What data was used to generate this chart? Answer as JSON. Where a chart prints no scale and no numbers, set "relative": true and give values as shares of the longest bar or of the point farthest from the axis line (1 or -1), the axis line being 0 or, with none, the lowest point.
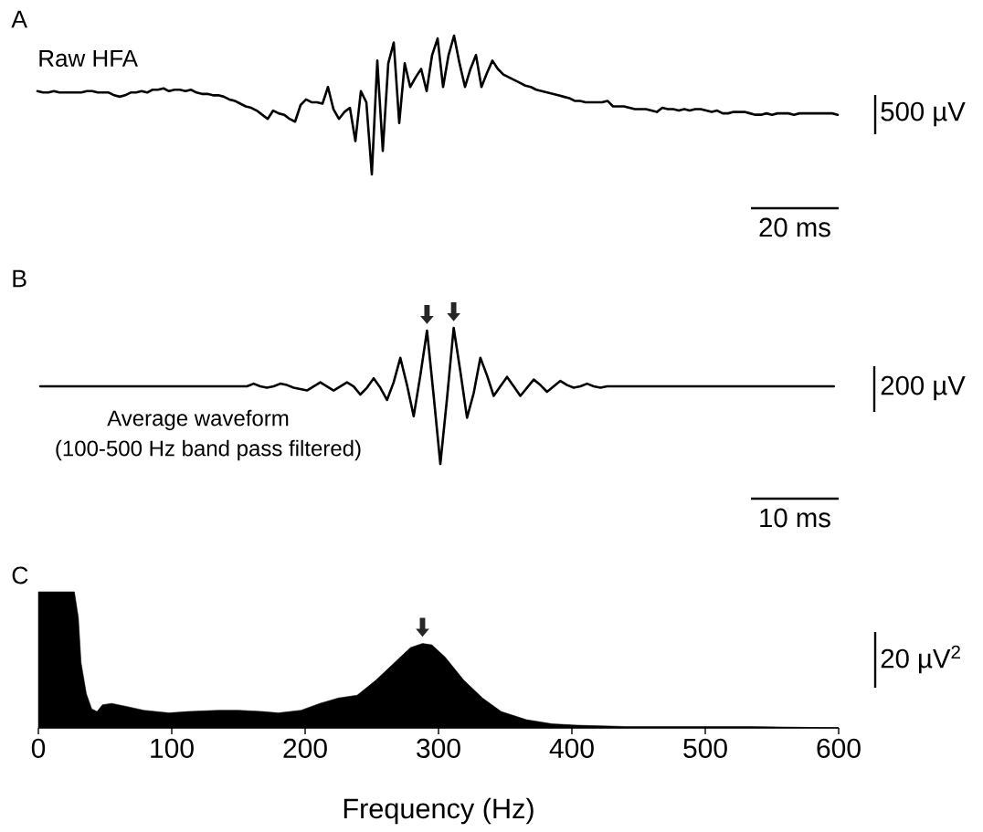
{
  "chart_data": [
    {
      "type": "line",
      "title": "A",
      "relative": true,
      "color": "#000000",
      "annotations": [
        "Raw HFA",
        "500 µV",
        "20 ms"
      ],
      "categories": [
        null,
        null,
        null,
        null,
        null,
        null,
        null,
        null,
        null,
        null,
        null,
        null,
        null,
        null,
        null,
        null,
        null,
        null,
        null,
        null,
        null,
        null,
        null,
        null,
        null,
        null,
        null,
        null,
        null,
        null,
        null,
        null,
        null,
        null,
        null,
        null,
        null,
        null,
        null,
        null,
        null,
        null,
        null,
        null,
        null,
        null,
        null,
        null,
        null,
        null,
        null,
        null,
        null,
        null,
        null,
        null,
        null,
        null,
        null,
        null,
        null,
        null,
        null,
        null,
        null,
        null,
        null,
        null,
        null,
        null,
        null,
        null,
        null,
        null,
        null,
        null,
        null,
        null,
        null,
        null,
        null,
        null,
        null,
        null,
        null,
        null,
        null,
        null,
        null,
        null,
        null,
        null,
        null,
        null,
        null,
        null,
        null,
        null,
        null,
        null,
        null,
        null,
        null,
        null,
        null,
        null,
        null,
        null,
        null,
        null,
        null,
        null,
        null,
        null,
        null,
        null,
        null,
        null,
        null,
        null,
        null,
        null,
        null,
        null,
        null,
        null,
        null,
        null,
        null,
        null,
        null,
        null,
        null,
        null,
        null,
        null,
        null,
        null,
        null,
        null,
        null,
        null,
        null,
        null,
        null,
        null,
        null
      ],
      "values": [
        0.6,
        0.59,
        0.59,
        0.6,
        0.59,
        0.59,
        0.59,
        0.59,
        0.59,
        0.6,
        0.6,
        0.59,
        0.59,
        0.59,
        0.57,
        0.56,
        0.57,
        0.59,
        0.59,
        0.6,
        0.59,
        0.61,
        0.61,
        0.62,
        0.6,
        0.61,
        0.61,
        0.6,
        0.61,
        0.59,
        0.58,
        0.58,
        0.57,
        0.57,
        0.56,
        0.54,
        0.53,
        0.51,
        0.49,
        0.48,
        0.46,
        0.43,
        0.4,
        0.46,
        0.44,
        0.43,
        0.4,
        0.38,
        0.5,
        0.54,
        0.52,
        0.52,
        0.51,
        0.63,
        0.47,
        0.4,
        0.45,
        0.48,
        0.24,
        0.6,
        0.52,
        0,
        0.82,
        0.17,
        0.8,
        0.95,
        0.37,
        0.8,
        0.63,
        0.7,
        0.76,
        0.6,
        0.86,
        0.98,
        0.63,
        0.86,
        1,
        0.8,
        0.63,
        0.76,
        0.86,
        0.63,
        0.73,
        0.82,
        0.76,
        0.72,
        0.7,
        0.68,
        0.66,
        0.64,
        0.63,
        0.61,
        0.6,
        0.59,
        0.58,
        0.57,
        0.56,
        0.55,
        0.53,
        0.53,
        0.52,
        0.52,
        0.52,
        0.52,
        0.53,
        0.49,
        0.49,
        0.49,
        0.48,
        0.47,
        0.47,
        0.47,
        0.46,
        0.45,
        0.48,
        0.47,
        0.47,
        0.46,
        0.47,
        0.46,
        0.47,
        0.47,
        0.46,
        0.45,
        0.46,
        0.44,
        0.44,
        0.45,
        0.45,
        0.45,
        0.44,
        0.43,
        0.43,
        0.44,
        0.43,
        0.44,
        0.44,
        0.44,
        0.43,
        0.44,
        0.44,
        0.44,
        0.44,
        0.44,
        0.44,
        0.44,
        0.43
      ]
    },
    {
      "type": "line",
      "title": "B",
      "relative": true,
      "color": "#000000",
      "annotations": [
        "Average waveform",
        "(100-500 Hz band pass filtered)",
        "200 µV",
        "10 ms"
      ],
      "categories": [
        null,
        null,
        null,
        null,
        null,
        null,
        null,
        null,
        null,
        null,
        null,
        null,
        null,
        null,
        null,
        null,
        null,
        null,
        null,
        null,
        null,
        null,
        null,
        null,
        null,
        null,
        null,
        null,
        null,
        null,
        null,
        null,
        null,
        null,
        null,
        null,
        null,
        null,
        null,
        null,
        null,
        null,
        null,
        null,
        null,
        null,
        null,
        null,
        null,
        null,
        null,
        null,
        null,
        null,
        null,
        null,
        null,
        null,
        null,
        null,
        null,
        null,
        null,
        null,
        null,
        null,
        null,
        null,
        null,
        null,
        null,
        null,
        null,
        null,
        null,
        null,
        null,
        null,
        null,
        null,
        null,
        null,
        null,
        null,
        null,
        null,
        null,
        null,
        null,
        null,
        null,
        null,
        null,
        null,
        null,
        null,
        null,
        null,
        null,
        null,
        null,
        null,
        null,
        null,
        null,
        null,
        null,
        null,
        null,
        null,
        null,
        null,
        null,
        null,
        null,
        null,
        null,
        null,
        null,
        null
      ],
      "values": [
        0.57,
        0.57,
        0.57,
        0.57,
        0.57,
        0.57,
        0.57,
        0.57,
        0.57,
        0.57,
        0.57,
        0.57,
        0.57,
        0.57,
        0.57,
        0.57,
        0.57,
        0.57,
        0.57,
        0.57,
        0.57,
        0.57,
        0.57,
        0.57,
        0.57,
        0.57,
        0.57,
        0.57,
        0.57,
        0.57,
        0.57,
        0.57,
        0.59,
        0.57,
        0.56,
        0.57,
        0.59,
        0.58,
        0.56,
        0.55,
        0.54,
        0.57,
        0.6,
        0.57,
        0.54,
        0.57,
        0.6,
        0.57,
        0.51,
        0.56,
        0.63,
        0.56,
        0.47,
        0.6,
        0.78,
        0.58,
        0.35,
        0.65,
        0.98,
        0.5,
        0,
        0.48,
        1,
        0.68,
        0.34,
        0.52,
        0.78,
        0.65,
        0.5,
        0.57,
        0.64,
        0.57,
        0.5,
        0.56,
        0.62,
        0.58,
        0.53,
        0.57,
        0.61,
        0.58,
        0.56,
        0.57,
        0.59,
        0.57,
        0.56,
        0.57,
        0.57,
        0.57,
        0.57,
        0.57,
        0.57,
        0.57,
        0.57,
        0.57,
        0.57,
        0.57,
        0.57,
        0.57,
        0.57,
        0.57,
        0.57,
        0.57,
        0.57,
        0.57,
        0.57,
        0.57,
        0.57,
        0.57,
        0.57,
        0.57,
        0.57,
        0.57,
        0.57,
        0.57,
        0.57,
        0.57,
        0.57,
        0.57,
        0.57,
        0.57
      ]
    },
    {
      "type": "area",
      "title": "C",
      "relative": true,
      "color": "#000000",
      "xlabel": "Frequency (Hz)",
      "tick_labels": "x",
      "annotations": [
        "20 µV$^{2}$"
      ],
      "xlim": [
        0,
        600
      ],
      "xticks": [
        0,
        100,
        200,
        300,
        400,
        500,
        600
      ],
      "x": [
        0,
        27,
        30,
        32,
        36,
        40,
        44,
        48,
        55,
        65,
        79,
        98,
        112,
        135,
        150,
        168,
        180,
        197,
        211,
        225,
        239,
        253,
        267,
        279,
        288,
        295,
        305,
        319,
        333,
        347,
        366,
        385,
        404,
        441,
        488,
        535,
        600
      ],
      "values": [
        1,
        1,
        0.81,
        0.48,
        0.25,
        0.14,
        0.12,
        0.17,
        0.18,
        0.16,
        0.13,
        0.11,
        0.12,
        0.13,
        0.13,
        0.12,
        0.11,
        0.13,
        0.18,
        0.22,
        0.24,
        0.35,
        0.48,
        0.59,
        0.62,
        0.61,
        0.52,
        0.35,
        0.22,
        0.12,
        0.06,
        0.03,
        0.02,
        0.01,
        0.01,
        0.01,
        0
      ]
    }
  ]
}
